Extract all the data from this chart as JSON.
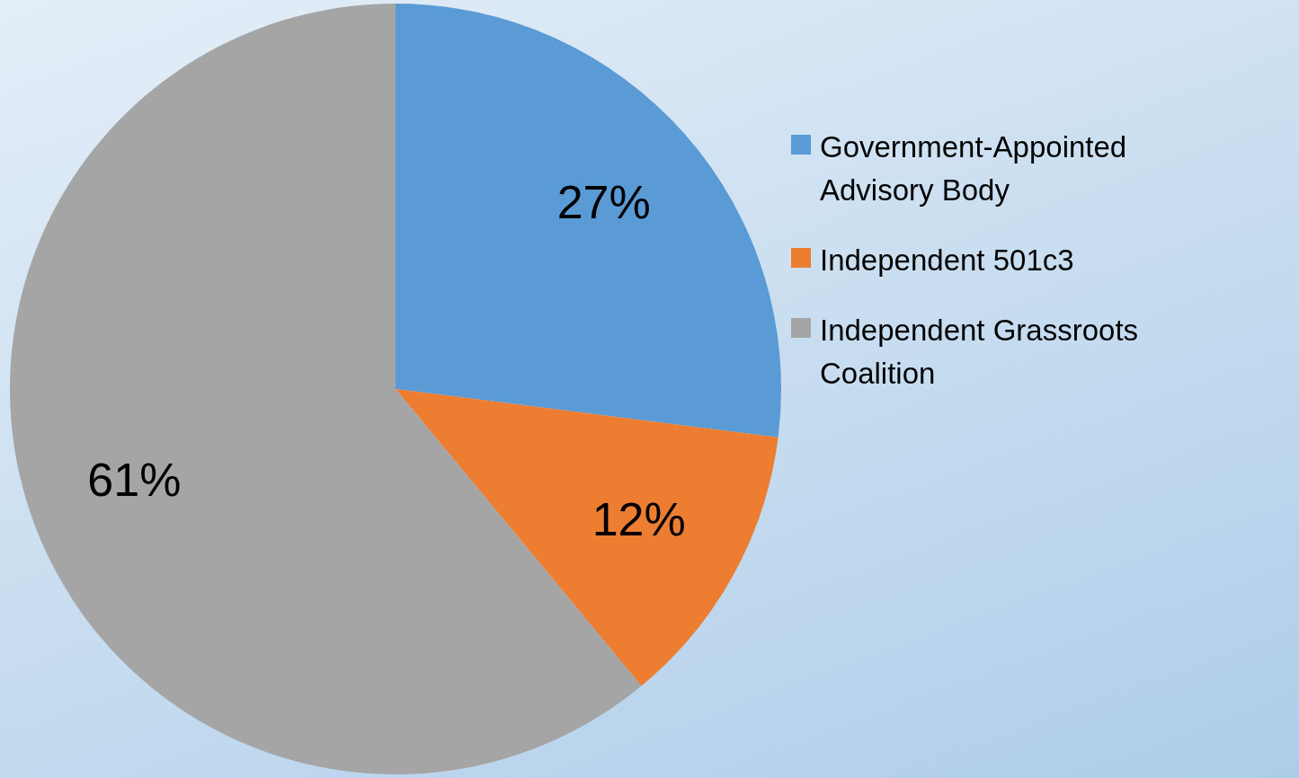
{
  "chart_data": {
    "type": "pie",
    "categories": [
      "Government-Appointed Advisory Body",
      "Independent 501c3",
      "Independent Grassroots Coalition"
    ],
    "values": [
      27,
      12,
      61
    ],
    "value_labels": [
      "27%",
      "12%",
      "61%"
    ],
    "colors": [
      "#5b9bd5",
      "#ed7d31",
      "#a5a5a5"
    ],
    "legend": "right"
  }
}
